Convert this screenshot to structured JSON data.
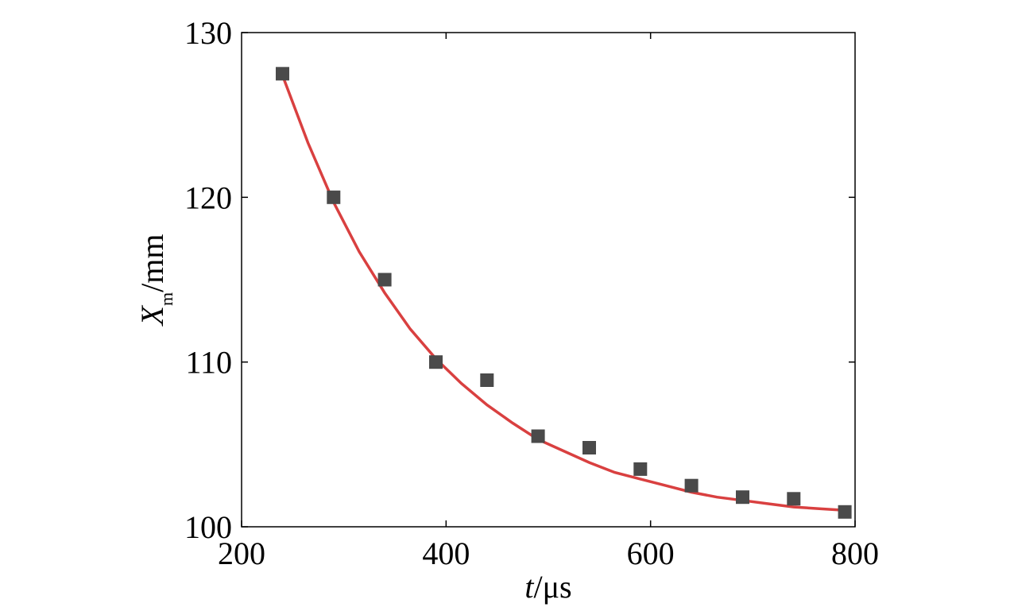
{
  "chart_data": {
    "type": "scatter",
    "title": "",
    "xlabel": {
      "var": "t",
      "unit": "/μs"
    },
    "ylabel": {
      "var": "X",
      "sub": "m",
      "unit": "/mm"
    },
    "xlim": [
      200,
      800
    ],
    "ylim": [
      100,
      130
    ],
    "xticks": [
      "200",
      "400",
      "600",
      "800"
    ],
    "yticks": [
      "100",
      "110",
      "120",
      "130"
    ],
    "grid": false,
    "legend": "none",
    "series": [
      {
        "kind": "points",
        "marker": "square",
        "color": "#4a4a4a",
        "x": [
          240,
          290,
          340,
          390,
          440,
          490,
          540,
          590,
          640,
          690,
          740,
          790
        ],
        "y": [
          127.5,
          120.0,
          115.0,
          110.0,
          108.9,
          105.5,
          104.8,
          103.5,
          102.5,
          101.8,
          101.7,
          100.9
        ]
      },
      {
        "kind": "fit-curve",
        "color": "#d94040",
        "x": [
          240,
          265,
          290,
          315,
          340,
          365,
          390,
          415,
          440,
          465,
          490,
          515,
          540,
          565,
          590,
          615,
          640,
          665,
          690,
          715,
          740,
          765,
          790
        ],
        "y": [
          127.4,
          123.3,
          119.7,
          116.7,
          114.2,
          112.0,
          110.2,
          108.7,
          107.4,
          106.3,
          105.3,
          104.6,
          103.9,
          103.3,
          102.9,
          102.5,
          102.1,
          101.8,
          101.6,
          101.4,
          101.2,
          101.1,
          101.0
        ]
      }
    ]
  }
}
